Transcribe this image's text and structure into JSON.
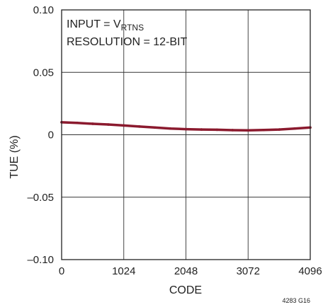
{
  "chart_data": {
    "type": "line",
    "title": "",
    "xlabel": "CODE",
    "ylabel": "TUE (%)",
    "xlim": [
      0,
      4096
    ],
    "ylim": [
      -0.1,
      0.1
    ],
    "x_ticks": [
      0,
      1024,
      2048,
      3072,
      4096
    ],
    "x_tick_labels": [
      "0",
      "1024",
      "2048",
      "3072",
      "4096"
    ],
    "y_ticks": [
      0.1,
      0.05,
      0,
      -0.05,
      -0.1
    ],
    "y_tick_labels": [
      "0.10",
      "0.05",
      "0",
      "–0.05",
      "–0.10"
    ],
    "grid": true,
    "line_color": "#8b1a2e",
    "annotations": {
      "input_prefix": "INPUT = V",
      "input_sub": "RTNS",
      "resolution": "RESOLUTION = 12-BIT"
    },
    "figure_id": "4283 G16",
    "series": [
      {
        "x": [
          0,
          256,
          512,
          768,
          1024,
          1280,
          1536,
          1792,
          2048,
          2304,
          2560,
          2816,
          3072,
          3328,
          3584,
          3840,
          4096
        ],
        "values": [
          0.01,
          0.0095,
          0.0088,
          0.0082,
          0.0074,
          0.0066,
          0.0058,
          0.005,
          0.0045,
          0.0042,
          0.004,
          0.0037,
          0.0035,
          0.0038,
          0.0042,
          0.005,
          0.0058
        ]
      }
    ]
  }
}
